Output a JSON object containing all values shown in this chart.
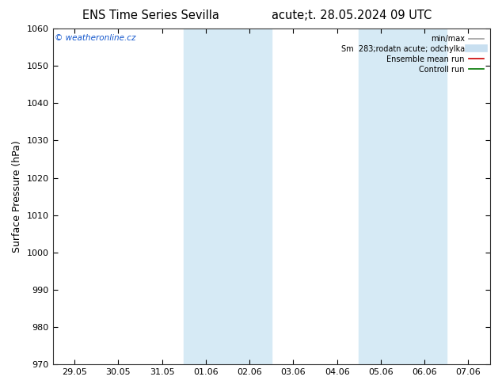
{
  "title_left": "ENS Time Series Sevilla",
  "title_right": "acute;t. 28.05.2024 09 UTC",
  "ylabel": "Surface Pressure (hPa)",
  "ylim": [
    970,
    1060
  ],
  "yticks": [
    970,
    980,
    990,
    1000,
    1010,
    1020,
    1030,
    1040,
    1050,
    1060
  ],
  "x_tick_labels": [
    "29.05",
    "30.05",
    "31.05",
    "01.06",
    "02.06",
    "03.06",
    "04.06",
    "05.06",
    "06.06",
    "07.06"
  ],
  "x_tick_positions": [
    0,
    1,
    2,
    3,
    4,
    5,
    6,
    7,
    8,
    9
  ],
  "shaded_bands": [
    {
      "xmin": 3.0,
      "xmax": 5.0
    },
    {
      "xmin": 7.0,
      "xmax": 9.0
    }
  ],
  "band_color": "#d6eaf5",
  "watermark": "© weatheronline.cz",
  "legend_items": [
    {
      "label": "min/max",
      "color": "#a0a0a0",
      "lw": 1.2
    },
    {
      "label": "Sm  283;rodatn acute; odchylka",
      "color": "#c8dff0",
      "lw": 7
    },
    {
      "label": "Ensemble mean run",
      "color": "#cc0000",
      "lw": 1.2
    },
    {
      "label": "Controll run",
      "color": "#007700",
      "lw": 1.2
    }
  ],
  "background_color": "#ffffff",
  "fig_width": 6.34,
  "fig_height": 4.9,
  "dpi": 100
}
